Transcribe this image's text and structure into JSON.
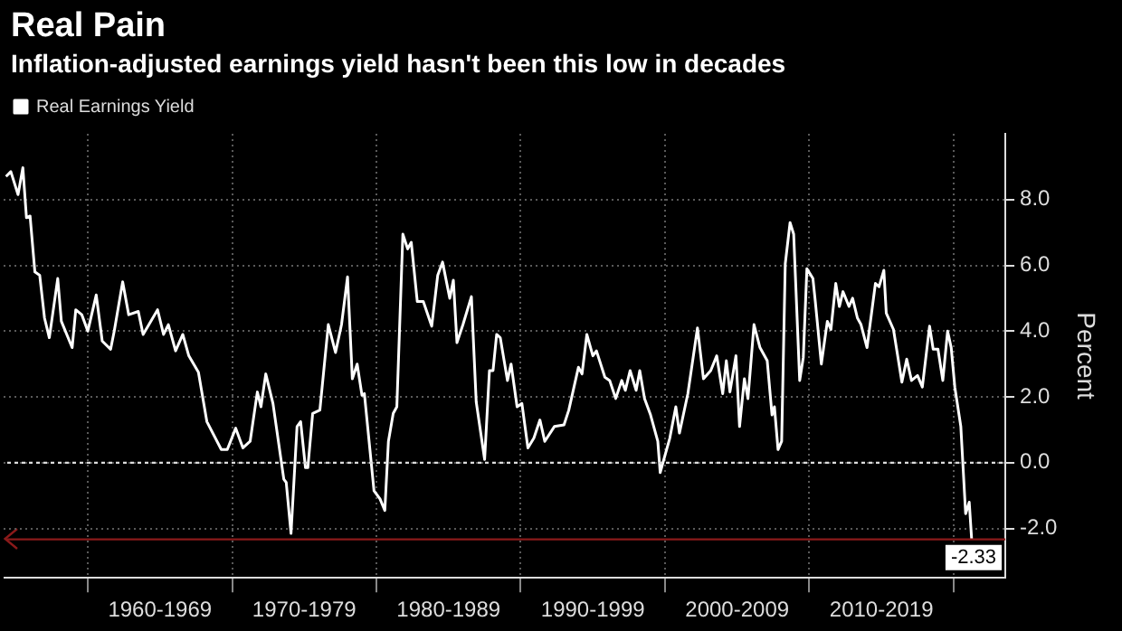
{
  "chart_data": {
    "type": "line",
    "title": "Real Pain",
    "subtitle": "Inflation-adjusted earnings yield hasn't been this low in decades",
    "ylabel": "Percent",
    "x": [
      "1954-05",
      "1954-09",
      "1955-03",
      "1955-07",
      "1955-10",
      "1956-01",
      "1956-05",
      "1956-09",
      "1957-01",
      "1957-05",
      "1957-12",
      "1958-03",
      "1958-12",
      "1959-03",
      "1959-08",
      "1960-01",
      "1960-08",
      "1961-01",
      "1961-08",
      "1961-11",
      "1962-06",
      "1962-11",
      "1963-07",
      "1963-11",
      "1964-11",
      "1965-04",
      "1965-08",
      "1966-02",
      "1966-08",
      "1967-01",
      "1967-09",
      "1968-04",
      "1969-04",
      "1969-09",
      "1970-04",
      "1970-10",
      "1971-04",
      "1971-10",
      "1972-01",
      "1972-05",
      "1972-11",
      "1973-08",
      "1973-10",
      "1974-02",
      "1974-07",
      "1974-10",
      "1975-02",
      "1975-04",
      "1975-08",
      "1976-02",
      "1976-09",
      "1977-03",
      "1977-08",
      "1978-01",
      "1978-05",
      "1978-09",
      "1979-01",
      "1979-03",
      "1979-11",
      "1980-04",
      "1980-08",
      "1980-11",
      "1981-03",
      "1981-06",
      "1981-11",
      "1982-03",
      "1982-06",
      "1982-11",
      "1983-04",
      "1983-11",
      "1984-04",
      "1984-08",
      "1985-02",
      "1985-05",
      "1985-08",
      "1986-01",
      "1986-08",
      "1986-12",
      "1987-07",
      "1987-11",
      "1988-02",
      "1988-05",
      "1988-08",
      "1989-02",
      "1989-05",
      "1989-10",
      "1990-02",
      "1990-07",
      "1990-12",
      "1991-05",
      "1991-09",
      "1992-05",
      "1993-01",
      "1993-05",
      "1994-01",
      "1994-04",
      "1994-08",
      "1995-01",
      "1995-04",
      "1995-11",
      "1996-03",
      "1996-08",
      "1997-01",
      "1997-04",
      "1997-08",
      "1998-01",
      "1998-04",
      "1998-08",
      "1999-01",
      "1999-07",
      "1999-09",
      "2000-05",
      "2000-10",
      "2001-01",
      "2001-08",
      "2002-04",
      "2002-09",
      "2003-03",
      "2003-08",
      "2004-01",
      "2004-04",
      "2004-07",
      "2004-12",
      "2005-03",
      "2005-07",
      "2005-10",
      "2006-03",
      "2006-08",
      "2007-02",
      "2007-06",
      "2007-08",
      "2007-11",
      "2008-02",
      "2008-05",
      "2008-09",
      "2008-12",
      "2009-05",
      "2009-08",
      "2009-11",
      "2010-04",
      "2010-06",
      "2010-11",
      "2011-04",
      "2011-07",
      "2011-11",
      "2012-02",
      "2012-05",
      "2012-10",
      "2013-01",
      "2013-05",
      "2013-08",
      "2014-01",
      "2014-08",
      "2014-11",
      "2015-03",
      "2015-05",
      "2015-11",
      "2016-06",
      "2016-10",
      "2017-02",
      "2017-07",
      "2017-11",
      "2018-05",
      "2018-08",
      "2018-12",
      "2019-04",
      "2019-08",
      "2019-11",
      "2020-02",
      "2020-07",
      "2020-11",
      "2021-02",
      "2021-04"
    ],
    "series": [
      {
        "name": "Real Earnings Yield",
        "color": "#ffffff",
        "values": [
          8.7,
          8.85,
          8.15,
          8.97,
          7.45,
          7.5,
          5.8,
          5.7,
          4.4,
          3.8,
          5.6,
          4.3,
          3.5,
          4.65,
          4.5,
          4.0,
          5.1,
          3.7,
          3.45,
          4.0,
          5.5,
          4.5,
          4.6,
          3.9,
          4.65,
          3.9,
          4.2,
          3.4,
          3.9,
          3.25,
          2.75,
          1.25,
          0.4,
          0.4,
          1.05,
          0.45,
          0.65,
          2.15,
          1.7,
          2.7,
          1.8,
          -0.5,
          -0.6,
          -2.15,
          1.1,
          1.25,
          -0.15,
          -0.15,
          1.5,
          1.6,
          4.2,
          3.35,
          4.2,
          5.65,
          2.55,
          3.0,
          2.05,
          2.1,
          -0.85,
          -1.1,
          -1.45,
          0.65,
          1.5,
          1.7,
          6.95,
          6.5,
          6.7,
          4.9,
          4.9,
          4.15,
          5.7,
          6.1,
          5.0,
          5.55,
          3.65,
          4.2,
          5.05,
          1.85,
          0.1,
          2.8,
          2.8,
          3.9,
          3.8,
          2.5,
          3.0,
          1.7,
          1.8,
          0.45,
          0.75,
          1.3,
          0.65,
          1.1,
          1.15,
          1.6,
          2.9,
          2.7,
          3.9,
          3.25,
          3.4,
          2.6,
          2.5,
          1.95,
          2.5,
          2.2,
          2.8,
          2.2,
          2.8,
          1.95,
          1.45,
          0.65,
          -0.3,
          0.75,
          1.7,
          0.9,
          2.1,
          4.1,
          2.55,
          2.8,
          3.25,
          2.1,
          3.1,
          2.15,
          3.25,
          1.1,
          2.55,
          1.95,
          4.2,
          3.5,
          3.1,
          1.45,
          1.7,
          0.4,
          0.65,
          6.05,
          7.3,
          6.95,
          2.5,
          3.2,
          5.9,
          5.6,
          4.9,
          3.0,
          4.3,
          4.05,
          5.45,
          4.75,
          5.2,
          4.75,
          5.0,
          4.4,
          4.2,
          3.5,
          5.45,
          5.35,
          5.85,
          4.55,
          4.05,
          2.45,
          3.15,
          2.5,
          2.65,
          2.3,
          4.15,
          3.45,
          3.45,
          2.5,
          4.0,
          3.5,
          2.3,
          1.1,
          -1.55,
          -1.2,
          -2.33
        ]
      }
    ],
    "xlim": [
      "1954-03",
      "2023-08"
    ],
    "xticks": [
      {
        "value": "1960",
        "label": null
      },
      {
        "value": "1965",
        "label": "1960-1969"
      },
      {
        "value": "1970",
        "label": null
      },
      {
        "value": "1975",
        "label": "1970-1979"
      },
      {
        "value": "1980",
        "label": null
      },
      {
        "value": "1985",
        "label": "1980-1989"
      },
      {
        "value": "1990",
        "label": null
      },
      {
        "value": "1995",
        "label": "1990-1999"
      },
      {
        "value": "2000",
        "label": null
      },
      {
        "value": "2005",
        "label": "2000-2009"
      },
      {
        "value": "2010",
        "label": null
      },
      {
        "value": "2015",
        "label": "2010-2019"
      },
      {
        "value": "2020",
        "label": null
      }
    ],
    "ylim": [
      -3.5,
      10
    ],
    "yticks": [
      {
        "value": -2,
        "label": "-2.0"
      },
      {
        "value": 0,
        "label": "0.0"
      },
      {
        "value": 2,
        "label": "2.0"
      },
      {
        "value": 4,
        "label": "4.0"
      },
      {
        "value": 6,
        "label": "6.0"
      },
      {
        "value": 8,
        "label": "8.0"
      }
    ],
    "ref_lines": [
      {
        "axis": "y",
        "value": 0,
        "color": "#dddddd",
        "line_style": "dotted"
      },
      {
        "axis": "y",
        "value": -2.33,
        "label": "-2.33",
        "color": "#8b1a1a",
        "line_style": "solid"
      }
    ],
    "grid": true,
    "legend": "top left",
    "marker": "none"
  }
}
